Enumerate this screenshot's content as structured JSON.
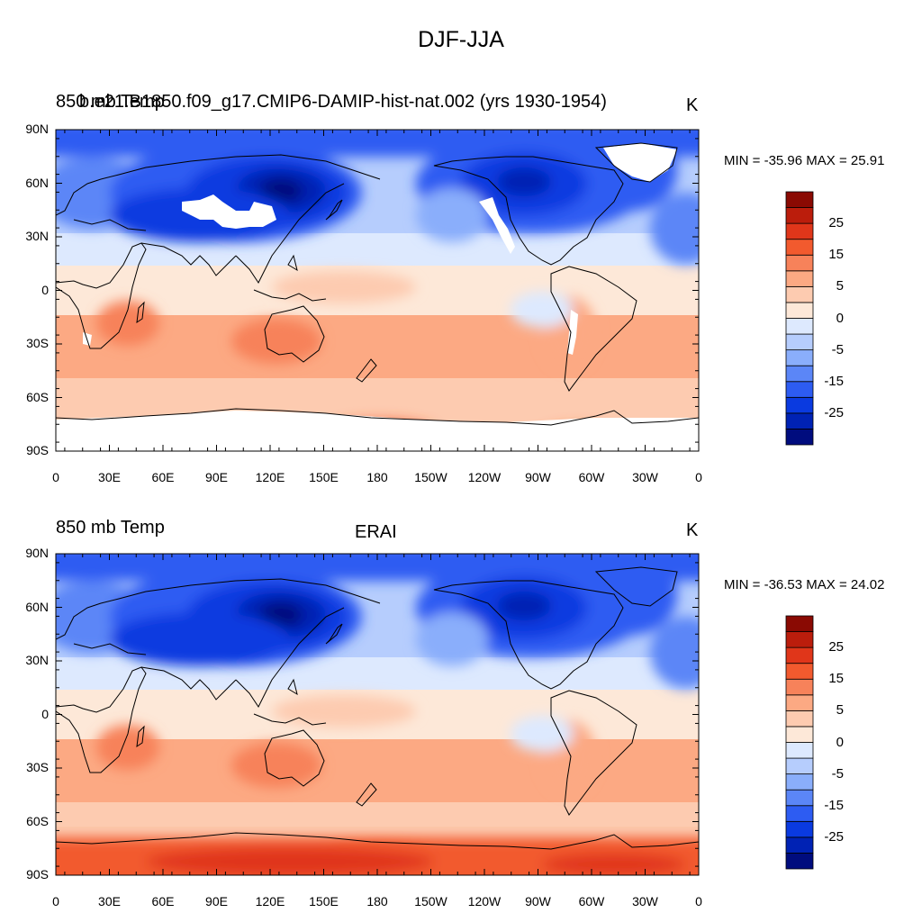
{
  "figure": {
    "title": "DJF-JJA"
  },
  "panels": [
    {
      "left_label": "850 mb Temp",
      "left_label_overlay": "b.e21.B1850.f09_g17.CMIP6-DAMIP-hist-nat.002 (yrs 1930-1954)",
      "center_label": "",
      "units": "K",
      "min_max": "MIN = -35.96 MAX =  25.91"
    },
    {
      "left_label": "850 mb Temp",
      "left_label_overlay": "",
      "center_label": "ERAI",
      "units": "K",
      "min_max": "MIN = -36.53 MAX =  24.02"
    }
  ],
  "axes": {
    "lat_ticks": [
      "90N",
      "60N",
      "30N",
      "0",
      "30S",
      "60S",
      "90S"
    ],
    "lon_ticks": [
      "0",
      "30E",
      "60E",
      "90E",
      "120E",
      "150E",
      "180",
      "150W",
      "120W",
      "90W",
      "60W",
      "30W",
      "0"
    ]
  },
  "colorbar": {
    "labels": [
      "25",
      "15",
      "5",
      "0",
      "-5",
      "-15",
      "-25"
    ],
    "levels": [
      -35,
      -30,
      -25,
      -20,
      -15,
      -10,
      -5,
      -2,
      0,
      2,
      5,
      10,
      15,
      20,
      25,
      30,
      35
    ],
    "colors": [
      "#000c7e",
      "#0022b4",
      "#0a3ae0",
      "#2d5cf2",
      "#5b86f7",
      "#8aaefb",
      "#b6cdfd",
      "#dde9fe",
      "#fde8d8",
      "#fdcbb0",
      "#fca983",
      "#f7825a",
      "#f25a2e",
      "#e0361a",
      "#bb1d0c",
      "#8a0a03"
    ]
  },
  "colors": {
    "missing": "#ffffff",
    "coast": "#000000"
  }
}
